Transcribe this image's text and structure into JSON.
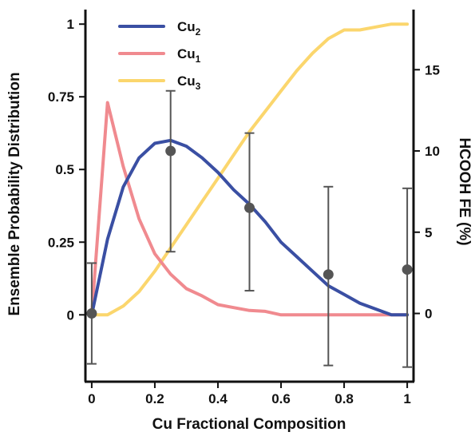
{
  "chart_data": {
    "type": "line",
    "xlabel": "Cu Fractional Composition",
    "ylabel": "Ensemble Probability Distribution",
    "y2label": "HCOOH FE (%)",
    "xlim": [
      -0.02,
      1.02
    ],
    "ylim": [
      -0.23,
      1.05
    ],
    "y2lim": [
      -4.2,
      18.7
    ],
    "x_ticks": [
      0,
      0.2,
      0.4,
      0.6,
      0.8,
      1
    ],
    "x_tick_labels": [
      "0",
      "0.2",
      "0.4",
      "0.6",
      "0.8",
      "1"
    ],
    "y_ticks": [
      0,
      0.25,
      0.5,
      0.75,
      1
    ],
    "y_tick_labels": [
      "0",
      "0.25",
      "0.5",
      "0.75",
      "1"
    ],
    "y2_ticks": [
      0,
      5,
      10,
      15
    ],
    "y2_tick_labels": [
      "0",
      "5",
      "10",
      "15"
    ],
    "series": [
      {
        "name": "Cu2",
        "label_main": "Cu",
        "label_sub": "2",
        "color": "#3a4fa3",
        "x": [
          0,
          0.05,
          0.1,
          0.15,
          0.2,
          0.25,
          0.3,
          0.35,
          0.4,
          0.45,
          0.5,
          0.55,
          0.6,
          0.65,
          0.7,
          0.75,
          0.8,
          0.85,
          0.9,
          0.95,
          1.0
        ],
        "y": [
          0,
          0.26,
          0.44,
          0.54,
          0.59,
          0.6,
          0.58,
          0.54,
          0.49,
          0.43,
          0.38,
          0.32,
          0.25,
          0.2,
          0.15,
          0.1,
          0.07,
          0.04,
          0.02,
          0.0,
          0.0
        ]
      },
      {
        "name": "Cu1",
        "label_main": "Cu",
        "label_sub": "1",
        "color": "#f08a8f",
        "x": [
          0,
          0.05,
          0.1,
          0.15,
          0.2,
          0.25,
          0.3,
          0.35,
          0.4,
          0.45,
          0.5,
          0.55,
          0.6,
          0.65,
          0.7,
          0.75,
          0.8,
          0.85,
          0.9,
          0.95,
          1.0
        ],
        "y": [
          0,
          0.73,
          0.51,
          0.33,
          0.21,
          0.14,
          0.09,
          0.065,
          0.035,
          0.025,
          0.015,
          0.012,
          0.0,
          0.0,
          0.0,
          0.0,
          0.0,
          0.0,
          0.0,
          0.0,
          0.0
        ]
      },
      {
        "name": "Cu3",
        "label_main": "Cu",
        "label_sub": "3",
        "color": "#fbd66d",
        "x": [
          0,
          0.05,
          0.1,
          0.15,
          0.2,
          0.25,
          0.3,
          0.35,
          0.4,
          0.45,
          0.5,
          0.55,
          0.6,
          0.65,
          0.7,
          0.75,
          0.8,
          0.85,
          0.9,
          0.95,
          1.0
        ],
        "y": [
          0,
          0.0,
          0.03,
          0.08,
          0.15,
          0.23,
          0.31,
          0.39,
          0.47,
          0.55,
          0.63,
          0.7,
          0.77,
          0.84,
          0.9,
          0.95,
          0.98,
          0.98,
          0.99,
          1.0,
          1.0
        ]
      }
    ],
    "fe_points": {
      "color": "#555555",
      "x": [
        0,
        0.25,
        0.5,
        0.75,
        1.0
      ],
      "y": [
        0.0,
        10.0,
        6.5,
        2.4,
        2.7
      ],
      "err_low": [
        3.1,
        6.2,
        5.1,
        5.6,
        6.0
      ],
      "err_high": [
        3.1,
        3.7,
        4.6,
        5.4,
        5.0
      ]
    },
    "legend_position": "top-left",
    "grid": false
  }
}
